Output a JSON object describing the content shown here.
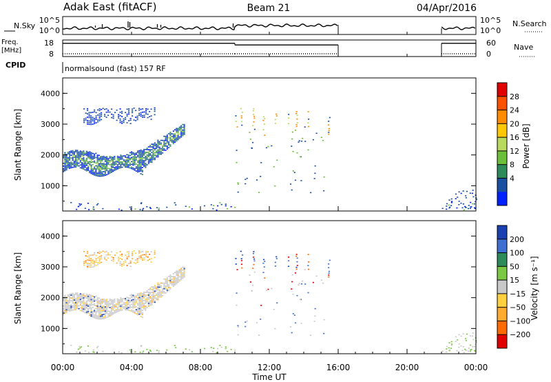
{
  "header": {
    "station": "Adak East (fitACF)",
    "beam": "Beam 21",
    "date": "04/Apr/2016"
  },
  "chart_data": [
    {
      "type": "line",
      "panel": "noise",
      "left_label": "N.Sky",
      "right_label": "N.Search",
      "left_ticks": [
        "10^5",
        "10^0"
      ],
      "right_ticks": [
        "10^5",
        "10^0"
      ],
      "data_gaps_hours": [
        [
          16,
          22
        ]
      ],
      "note_values": "noise level between 10^0 and 10^5, mostly near 10^1"
    },
    {
      "type": "line",
      "panel": "freq_nave",
      "left_label_1": "Freq.",
      "left_label_2": "[MHz]",
      "right_label": "Nave",
      "left_ticks": [
        "18",
        "8"
      ],
      "right_ticks": [
        "60",
        "0"
      ],
      "freq_segments": [
        {
          "x": [
            0,
            10
          ],
          "mhz": 16.0
        },
        {
          "x": [
            10,
            16
          ],
          "mhz": 15.0
        },
        {
          "x": [
            22,
            24
          ],
          "mhz": 16.0
        }
      ],
      "nave_segments": [
        {
          "x": [
            0,
            10
          ],
          "value": 10
        },
        {
          "x": [
            10,
            16
          ],
          "value": 10
        },
        {
          "x": [
            22,
            24
          ],
          "value": 10
        }
      ]
    },
    {
      "type": "text",
      "panel": "cpid",
      "label": "CPID",
      "program": "normalsound (fast) 157 RF"
    },
    {
      "type": "heatmap",
      "panel": "power",
      "ylabel": "Slant Range [km]",
      "yticks": [
        "4000",
        "3000",
        "2000",
        "1000"
      ],
      "ylim": [
        180,
        4500
      ],
      "xlim": [
        0,
        24
      ],
      "colorbar_label": "Power [dB]",
      "colorbar_ticks": [
        "28",
        "24",
        "20",
        "16",
        "12",
        "8",
        "4"
      ],
      "colorbar_colors": [
        "#e00000",
        "#ff5000",
        "#ff8c00",
        "#ffc800",
        "#b8d860",
        "#6cbf3a",
        "#2f8a5a",
        "#1a4fa0",
        "#0020ff"
      ],
      "features": [
        {
          "desc": "ground scatter band",
          "x": [
            0.0,
            7.1
          ],
          "range_km": [
            1450,
            3000
          ]
        },
        {
          "desc": "upper echoes",
          "x": [
            1.2,
            5.3
          ],
          "range_km": [
            3000,
            3550
          ]
        },
        {
          "desc": "sporadic echoes",
          "x": [
            10.0,
            15.5
          ],
          "range_km": [
            600,
            3600
          ]
        },
        {
          "desc": "late echoes",
          "x": [
            22.0,
            24.0
          ],
          "range_km": [
            200,
            900
          ]
        }
      ]
    },
    {
      "type": "heatmap",
      "panel": "velocity",
      "ylabel": "Slant Range [km]",
      "yticks": [
        "4000",
        "3000",
        "2000",
        "1000"
      ],
      "ylim": [
        180,
        4500
      ],
      "xlim": [
        0,
        24
      ],
      "colorbar_label": "Velocity [m s⁻¹]",
      "colorbar_ticks": [
        "200",
        "100",
        "50",
        "15",
        "−15",
        "−50",
        "−100",
        "−200"
      ],
      "colorbar_colors": [
        "#1a3fb0",
        "#3f6fd0",
        "#2f8a5a",
        "#7ac843",
        "#c8c8c8",
        "#ffd040",
        "#ffaa30",
        "#ff6a00",
        "#e00000"
      ]
    }
  ],
  "x_axis": {
    "xlabel": "Time UT",
    "ticks": [
      "00:00",
      "04:00",
      "08:00",
      "12:00",
      "16:00",
      "20:00",
      "00:00"
    ]
  }
}
